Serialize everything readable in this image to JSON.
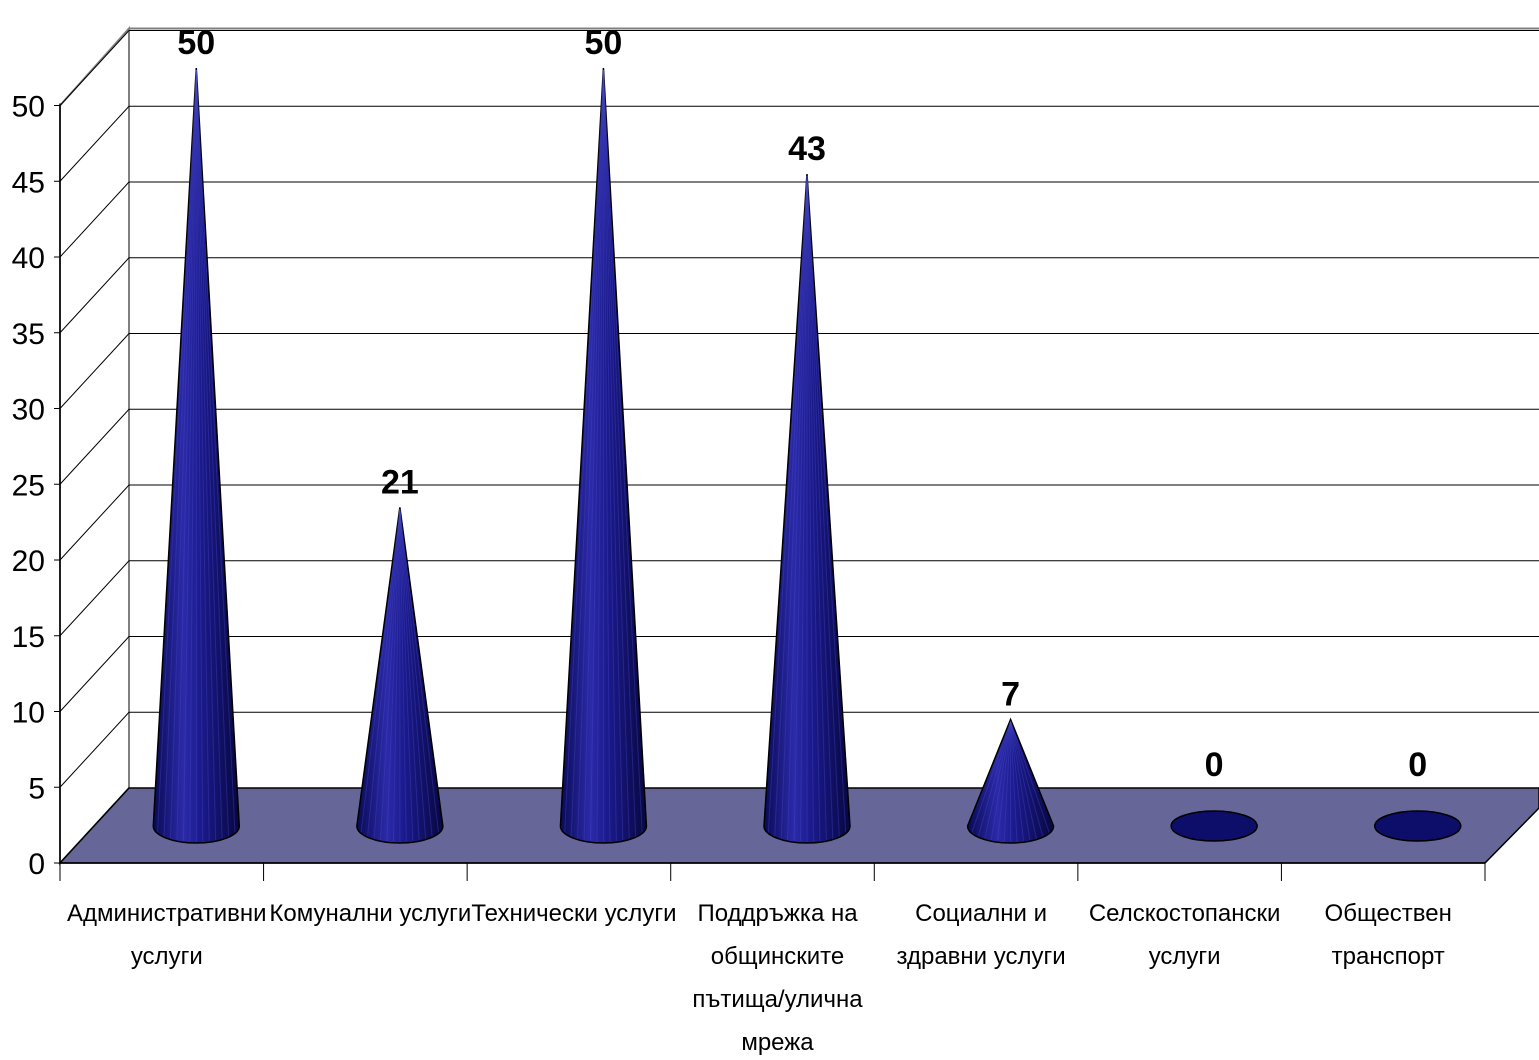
{
  "chart_data": {
    "type": "bar",
    "shape": "cone-3d",
    "categories": [
      [
        "Административни",
        "услуги"
      ],
      [
        "Комунални услуги"
      ],
      [
        "Технически услуги"
      ],
      [
        "Поддръжка на",
        "общинските",
        "пътища/улична",
        "мрежа"
      ],
      [
        "Социални и",
        "здравни услуги"
      ],
      [
        "Селскостопански",
        "услуги"
      ],
      [
        "Обществен",
        "транспорт"
      ]
    ],
    "values": [
      50,
      21,
      50,
      43,
      7,
      0,
      0
    ],
    "data_labels": [
      "50",
      "21",
      "50",
      "43",
      "7",
      "0",
      "0"
    ],
    "ylim": [
      0,
      50
    ],
    "yticks": [
      "0",
      "5",
      "10",
      "15",
      "20",
      "25",
      "30",
      "35",
      "40",
      "45",
      "50"
    ],
    "grid": true,
    "legend": "none",
    "colors": {
      "cone": "#1b1a8c",
      "cone_dark": "#0a0a55",
      "cone_light": "#3b3bb8",
      "floor": "#666699",
      "grid": "#000000",
      "wall": "#ffffff"
    }
  }
}
